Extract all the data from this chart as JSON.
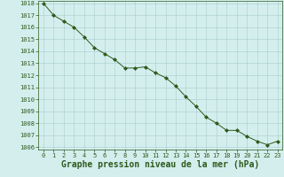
{
  "x": [
    0,
    1,
    2,
    3,
    4,
    5,
    6,
    7,
    8,
    9,
    10,
    11,
    12,
    13,
    14,
    15,
    16,
    17,
    18,
    19,
    20,
    21,
    22,
    23
  ],
  "y": [
    1018.0,
    1017.0,
    1016.5,
    1016.0,
    1015.2,
    1014.3,
    1013.8,
    1013.3,
    1012.6,
    1012.6,
    1012.7,
    1012.2,
    1011.8,
    1011.1,
    1010.2,
    1009.4,
    1008.5,
    1008.0,
    1007.4,
    1007.4,
    1006.9,
    1006.5,
    1006.2,
    1006.5
  ],
  "line_color": "#2d5a1b",
  "marker": "D",
  "marker_size": 2.0,
  "bg_color": "#d4eeee",
  "grid_color": "#a8cccc",
  "text_color": "#2d5a1b",
  "xlabel": "Graphe pression niveau de la mer (hPa)",
  "ylim": [
    1006,
    1018
  ],
  "xlim": [
    -0.5,
    23.5
  ],
  "yticks": [
    1006,
    1007,
    1008,
    1009,
    1010,
    1011,
    1012,
    1013,
    1014,
    1015,
    1016,
    1017,
    1018
  ],
  "xticks": [
    0,
    1,
    2,
    3,
    4,
    5,
    6,
    7,
    8,
    9,
    10,
    11,
    12,
    13,
    14,
    15,
    16,
    17,
    18,
    19,
    20,
    21,
    22,
    23
  ],
  "tick_fontsize": 5.0,
  "xlabel_fontsize": 7.0,
  "xlabel_bold": true
}
